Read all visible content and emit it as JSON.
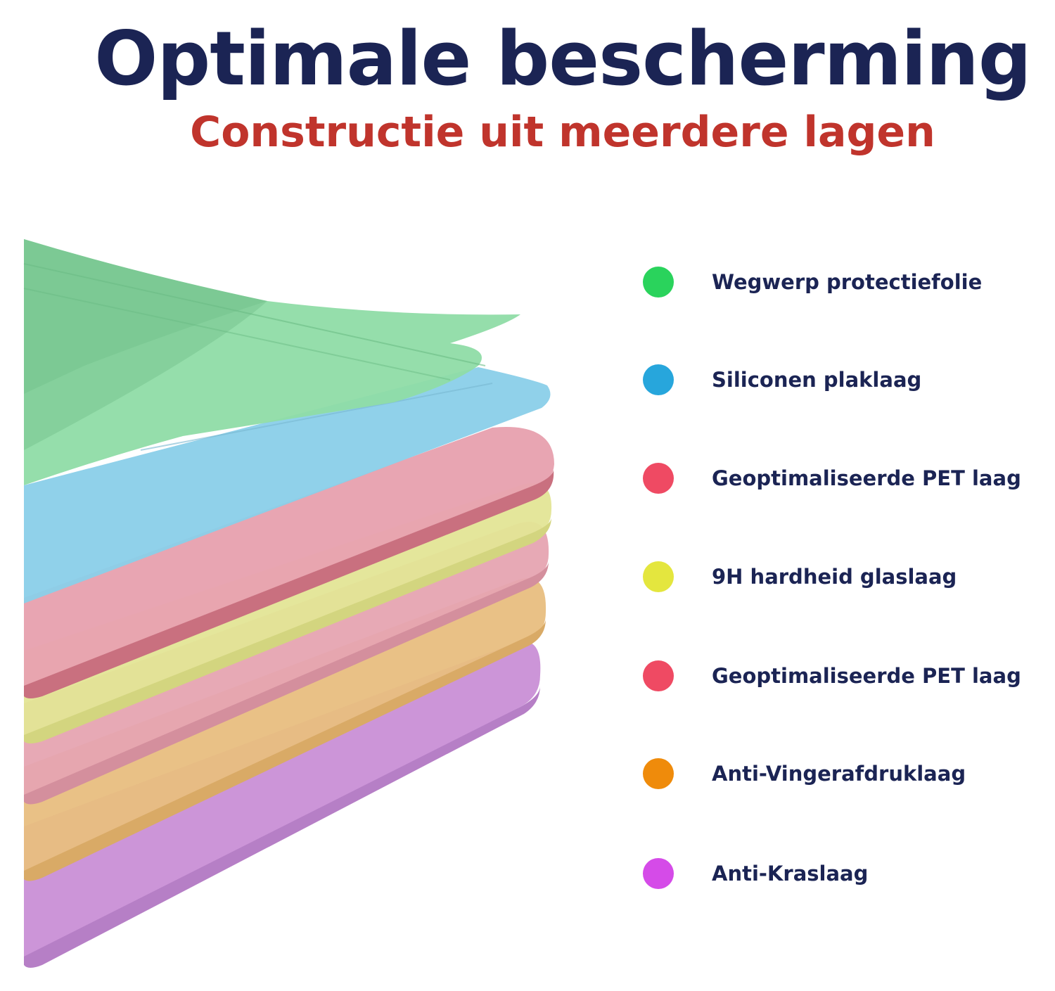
{
  "header": {
    "title": "Optimale bescherming",
    "subtitle": "Constructie uit meerdere lagen"
  },
  "legend": {
    "items": [
      {
        "label": "Wegwerp protectiefolie",
        "color": "#2ad35c"
      },
      {
        "label": "Siliconen plaklaag",
        "color": "#27a6dc"
      },
      {
        "label": "Geoptimaliseerde PET laag",
        "color": "#ef4a63"
      },
      {
        "label": "9H hardheid glaslaag",
        "color": "#e4e63e"
      },
      {
        "label": "Geoptimaliseerde PET laag",
        "color": "#ef4a63"
      },
      {
        "label": "Anti-Vingerafdruklaag",
        "color": "#ef8b0b"
      },
      {
        "label": "Anti-Kraslaag",
        "color": "#d54be8"
      }
    ]
  },
  "illustration": {
    "layer_colors": {
      "green": "#8fdca6",
      "blue": "#8acfe9",
      "pink": "#e7a2b0",
      "yellow": "#e3e596",
      "pink2": "#e6a4b1",
      "orange": "#e8be80",
      "purple": "#c98fd6"
    }
  }
}
